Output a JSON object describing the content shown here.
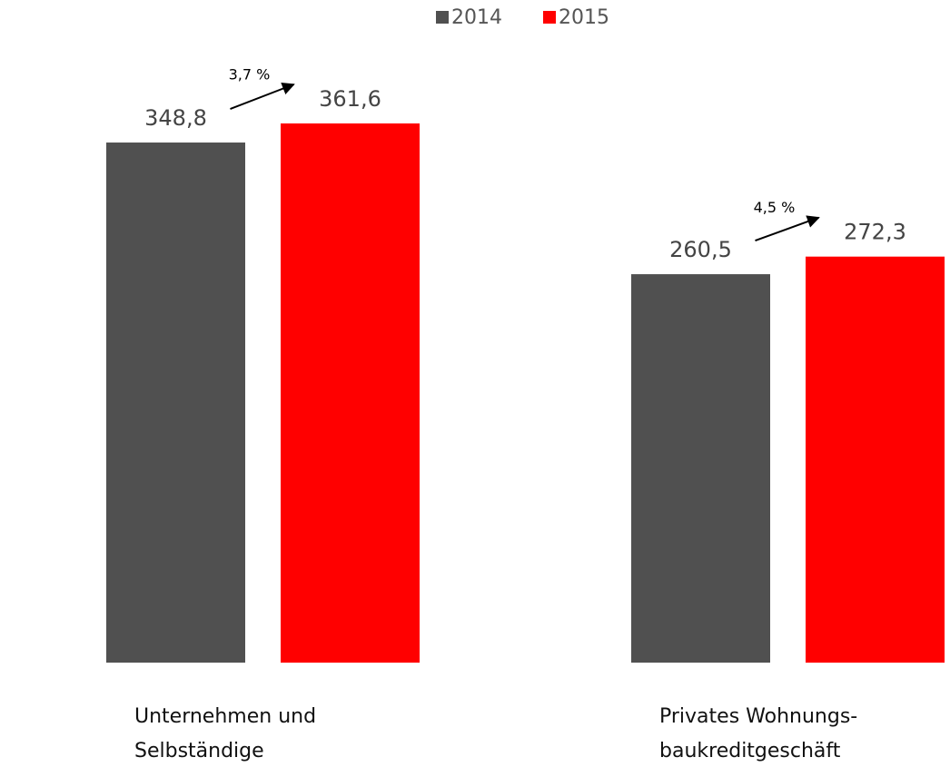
{
  "chart_data": {
    "type": "bar",
    "categories": [
      [
        "Unternehmen und",
        "Selbständige"
      ],
      [
        "Privates Wohnungs-",
        "baukreditgeschäft"
      ]
    ],
    "series": [
      {
        "name": "2014",
        "color": "#505050",
        "values": [
          348.8,
          260.5
        ],
        "value_labels": [
          "348,8",
          "260,5"
        ]
      },
      {
        "name": "2015",
        "color": "#ff0000",
        "values": [
          361.6,
          272.3
        ],
        "value_labels": [
          "361,6",
          "272,3"
        ]
      }
    ],
    "annotations": [
      "3,7 %",
      "4,5 %"
    ],
    "legend": "top"
  }
}
